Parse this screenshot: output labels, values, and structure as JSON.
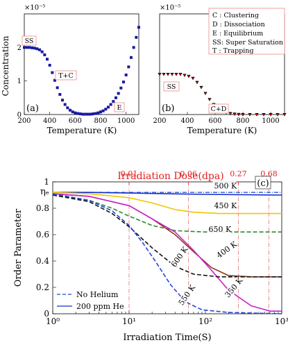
{
  "chart_data": [
    {
      "panel": "(a)",
      "type": "scatter",
      "ylabel": "Concentration",
      "xlabel": "Temperature (K)",
      "yscale_label": "×10⁻⁵",
      "xlim": [
        200,
        1100
      ],
      "ylim": [
        0,
        3
      ],
      "xticks": [
        200,
        400,
        600,
        800,
        1000
      ],
      "yticks": [
        0,
        1,
        2
      ],
      "color": "#1a1aa0",
      "annotations": [
        "SS",
        "T+C",
        "E"
      ],
      "points": [
        [
          200,
          2.0
        ],
        [
          220,
          2.0
        ],
        [
          240,
          2.0
        ],
        [
          260,
          1.99
        ],
        [
          280,
          1.98
        ],
        [
          300,
          1.96
        ],
        [
          320,
          1.93
        ],
        [
          340,
          1.87
        ],
        [
          360,
          1.78
        ],
        [
          380,
          1.65
        ],
        [
          400,
          1.47
        ],
        [
          420,
          1.25
        ],
        [
          440,
          1.02
        ],
        [
          460,
          0.8
        ],
        [
          480,
          0.6
        ],
        [
          500,
          0.43
        ],
        [
          520,
          0.3
        ],
        [
          540,
          0.2
        ],
        [
          560,
          0.13
        ],
        [
          580,
          0.08
        ],
        [
          600,
          0.05
        ],
        [
          620,
          0.03
        ],
        [
          640,
          0.02
        ],
        [
          660,
          0.01
        ],
        [
          680,
          0.01
        ],
        [
          700,
          0.01
        ],
        [
          720,
          0.01
        ],
        [
          740,
          0.02
        ],
        [
          760,
          0.03
        ],
        [
          780,
          0.05
        ],
        [
          800,
          0.08
        ],
        [
          820,
          0.11
        ],
        [
          840,
          0.16
        ],
        [
          860,
          0.22
        ],
        [
          880,
          0.3
        ],
        [
          900,
          0.39
        ],
        [
          920,
          0.5
        ],
        [
          940,
          0.63
        ],
        [
          960,
          0.79
        ],
        [
          980,
          0.97
        ],
        [
          1000,
          1.18
        ],
        [
          1020,
          1.42
        ],
        [
          1040,
          1.7
        ],
        [
          1060,
          2.0
        ],
        [
          1080,
          2.3
        ],
        [
          1100,
          2.6
        ]
      ]
    },
    {
      "panel": "(b)",
      "type": "scatter",
      "xlabel": "Temperature (K)",
      "yscale_label": "×10⁻⁵",
      "xlim": [
        200,
        1100
      ],
      "ylim": [
        0,
        1
      ],
      "xticks": [
        200,
        400,
        600,
        800,
        1000
      ],
      "colors": [
        "#000000",
        "#d40000"
      ],
      "annotations": [
        "SS",
        "C+D"
      ],
      "legend_text": [
        "C : Clustering",
        "D : Dissociation",
        "E : Equilibrium",
        "SS: Super Saturation",
        "T : Trapping"
      ],
      "points": [
        [
          200,
          0.4
        ],
        [
          230,
          0.4
        ],
        [
          260,
          0.4
        ],
        [
          290,
          0.4
        ],
        [
          320,
          0.4
        ],
        [
          350,
          0.4
        ],
        [
          380,
          0.39
        ],
        [
          410,
          0.38
        ],
        [
          440,
          0.36
        ],
        [
          470,
          0.32
        ],
        [
          500,
          0.27
        ],
        [
          530,
          0.21
        ],
        [
          560,
          0.15
        ],
        [
          590,
          0.1
        ],
        [
          620,
          0.06
        ],
        [
          650,
          0.035
        ],
        [
          680,
          0.02
        ],
        [
          710,
          0.01
        ],
        [
          740,
          0.005
        ],
        [
          770,
          0.002
        ],
        [
          800,
          0.0
        ],
        [
          850,
          0.0
        ],
        [
          900,
          0.0
        ],
        [
          950,
          0.0
        ],
        [
          1000,
          0.0
        ],
        [
          1050,
          0.0
        ],
        [
          1100,
          0.0
        ]
      ]
    },
    {
      "panel": "(c)",
      "type": "line",
      "xlabel": "Irradiation Time(S)",
      "ylabel": "Order Parameter",
      "top_axis_label": "Irradiation Dose(dpa)",
      "top_ticks": [
        {
          "label": "0.01",
          "t": 10
        },
        {
          "label": "0.06",
          "t": 60
        },
        {
          "label": "0.27",
          "t": 270
        },
        {
          "label": "0.68",
          "t": 680
        }
      ],
      "xscale": "log",
      "xlim": [
        1,
        1000
      ],
      "ylim": [
        0,
        1
      ],
      "xtick_labels": [
        "10⁰",
        "10¹",
        "10²",
        "10³"
      ],
      "yticks": [
        "0",
        "0.2",
        "0.4",
        "0.6",
        "0.8",
        "1"
      ],
      "eta_label": "ηₑ",
      "eta_value": 0.92,
      "legend": [
        "No Helium",
        "200 ppm He"
      ],
      "temp_labels": [
        "500 K",
        "450 K",
        "650 K",
        "400 K",
        "600 K",
        "350 K",
        "550 K"
      ],
      "series": [
        {
          "color": "#4d6bd6",
          "style": "dashdot",
          "points": [
            [
              1,
              0.92
            ],
            [
              1000,
              0.92
            ]
          ]
        },
        {
          "color": "#1030c8",
          "style": "solid",
          "points": [
            [
              1,
              0.92
            ],
            [
              3,
              0.92
            ],
            [
              10,
              0.915
            ],
            [
              30,
              0.91
            ],
            [
              100,
              0.905
            ],
            [
              1000,
              0.9
            ]
          ]
        },
        {
          "color": "#f2c400",
          "style": "solid",
          "points": [
            [
              1,
              0.92
            ],
            [
              3,
              0.91
            ],
            [
              10,
              0.88
            ],
            [
              20,
              0.84
            ],
            [
              40,
              0.79
            ],
            [
              70,
              0.77
            ],
            [
              150,
              0.76
            ],
            [
              1000,
              0.76
            ]
          ]
        },
        {
          "color": "#2a8a2a",
          "style": "dash",
          "points": [
            [
              1,
              0.9
            ],
            [
              3,
              0.86
            ],
            [
              6,
              0.8
            ],
            [
              10,
              0.74
            ],
            [
              20,
              0.67
            ],
            [
              40,
              0.63
            ],
            [
              100,
              0.62
            ],
            [
              1000,
              0.62
            ]
          ]
        },
        {
          "color": "#8b3a1a",
          "style": "solid",
          "points": [
            [
              1,
              0.91
            ],
            [
              3,
              0.89
            ],
            [
              10,
              0.82
            ],
            [
              20,
              0.72
            ],
            [
              40,
              0.6
            ],
            [
              70,
              0.47
            ],
            [
              120,
              0.35
            ],
            [
              200,
              0.29
            ],
            [
              400,
              0.28
            ],
            [
              1000,
              0.28
            ]
          ]
        },
        {
          "color": "#cc22cc",
          "style": "solid",
          "points": [
            [
              1,
              0.91
            ],
            [
              3,
              0.89
            ],
            [
              10,
              0.82
            ],
            [
              20,
              0.72
            ],
            [
              40,
              0.62
            ],
            [
              70,
              0.48
            ],
            [
              120,
              0.33
            ],
            [
              200,
              0.18
            ],
            [
              400,
              0.06
            ],
            [
              700,
              0.02
            ],
            [
              1000,
              0.02
            ]
          ]
        },
        {
          "color": "#111111",
          "style": "dash",
          "points": [
            [
              1,
              0.9
            ],
            [
              3,
              0.85
            ],
            [
              6,
              0.76
            ],
            [
              10,
              0.66
            ],
            [
              20,
              0.5
            ],
            [
              40,
              0.36
            ],
            [
              70,
              0.3
            ],
            [
              150,
              0.28
            ],
            [
              1000,
              0.28
            ]
          ]
        },
        {
          "color": "#2244dd",
          "style": "dash",
          "points": [
            [
              1,
              0.91
            ],
            [
              3,
              0.86
            ],
            [
              6,
              0.78
            ],
            [
              10,
              0.67
            ],
            [
              15,
              0.54
            ],
            [
              22,
              0.4
            ],
            [
              35,
              0.22
            ],
            [
              55,
              0.09
            ],
            [
              90,
              0.03
            ],
            [
              200,
              0.01
            ],
            [
              1000,
              0.0
            ]
          ]
        }
      ]
    }
  ]
}
